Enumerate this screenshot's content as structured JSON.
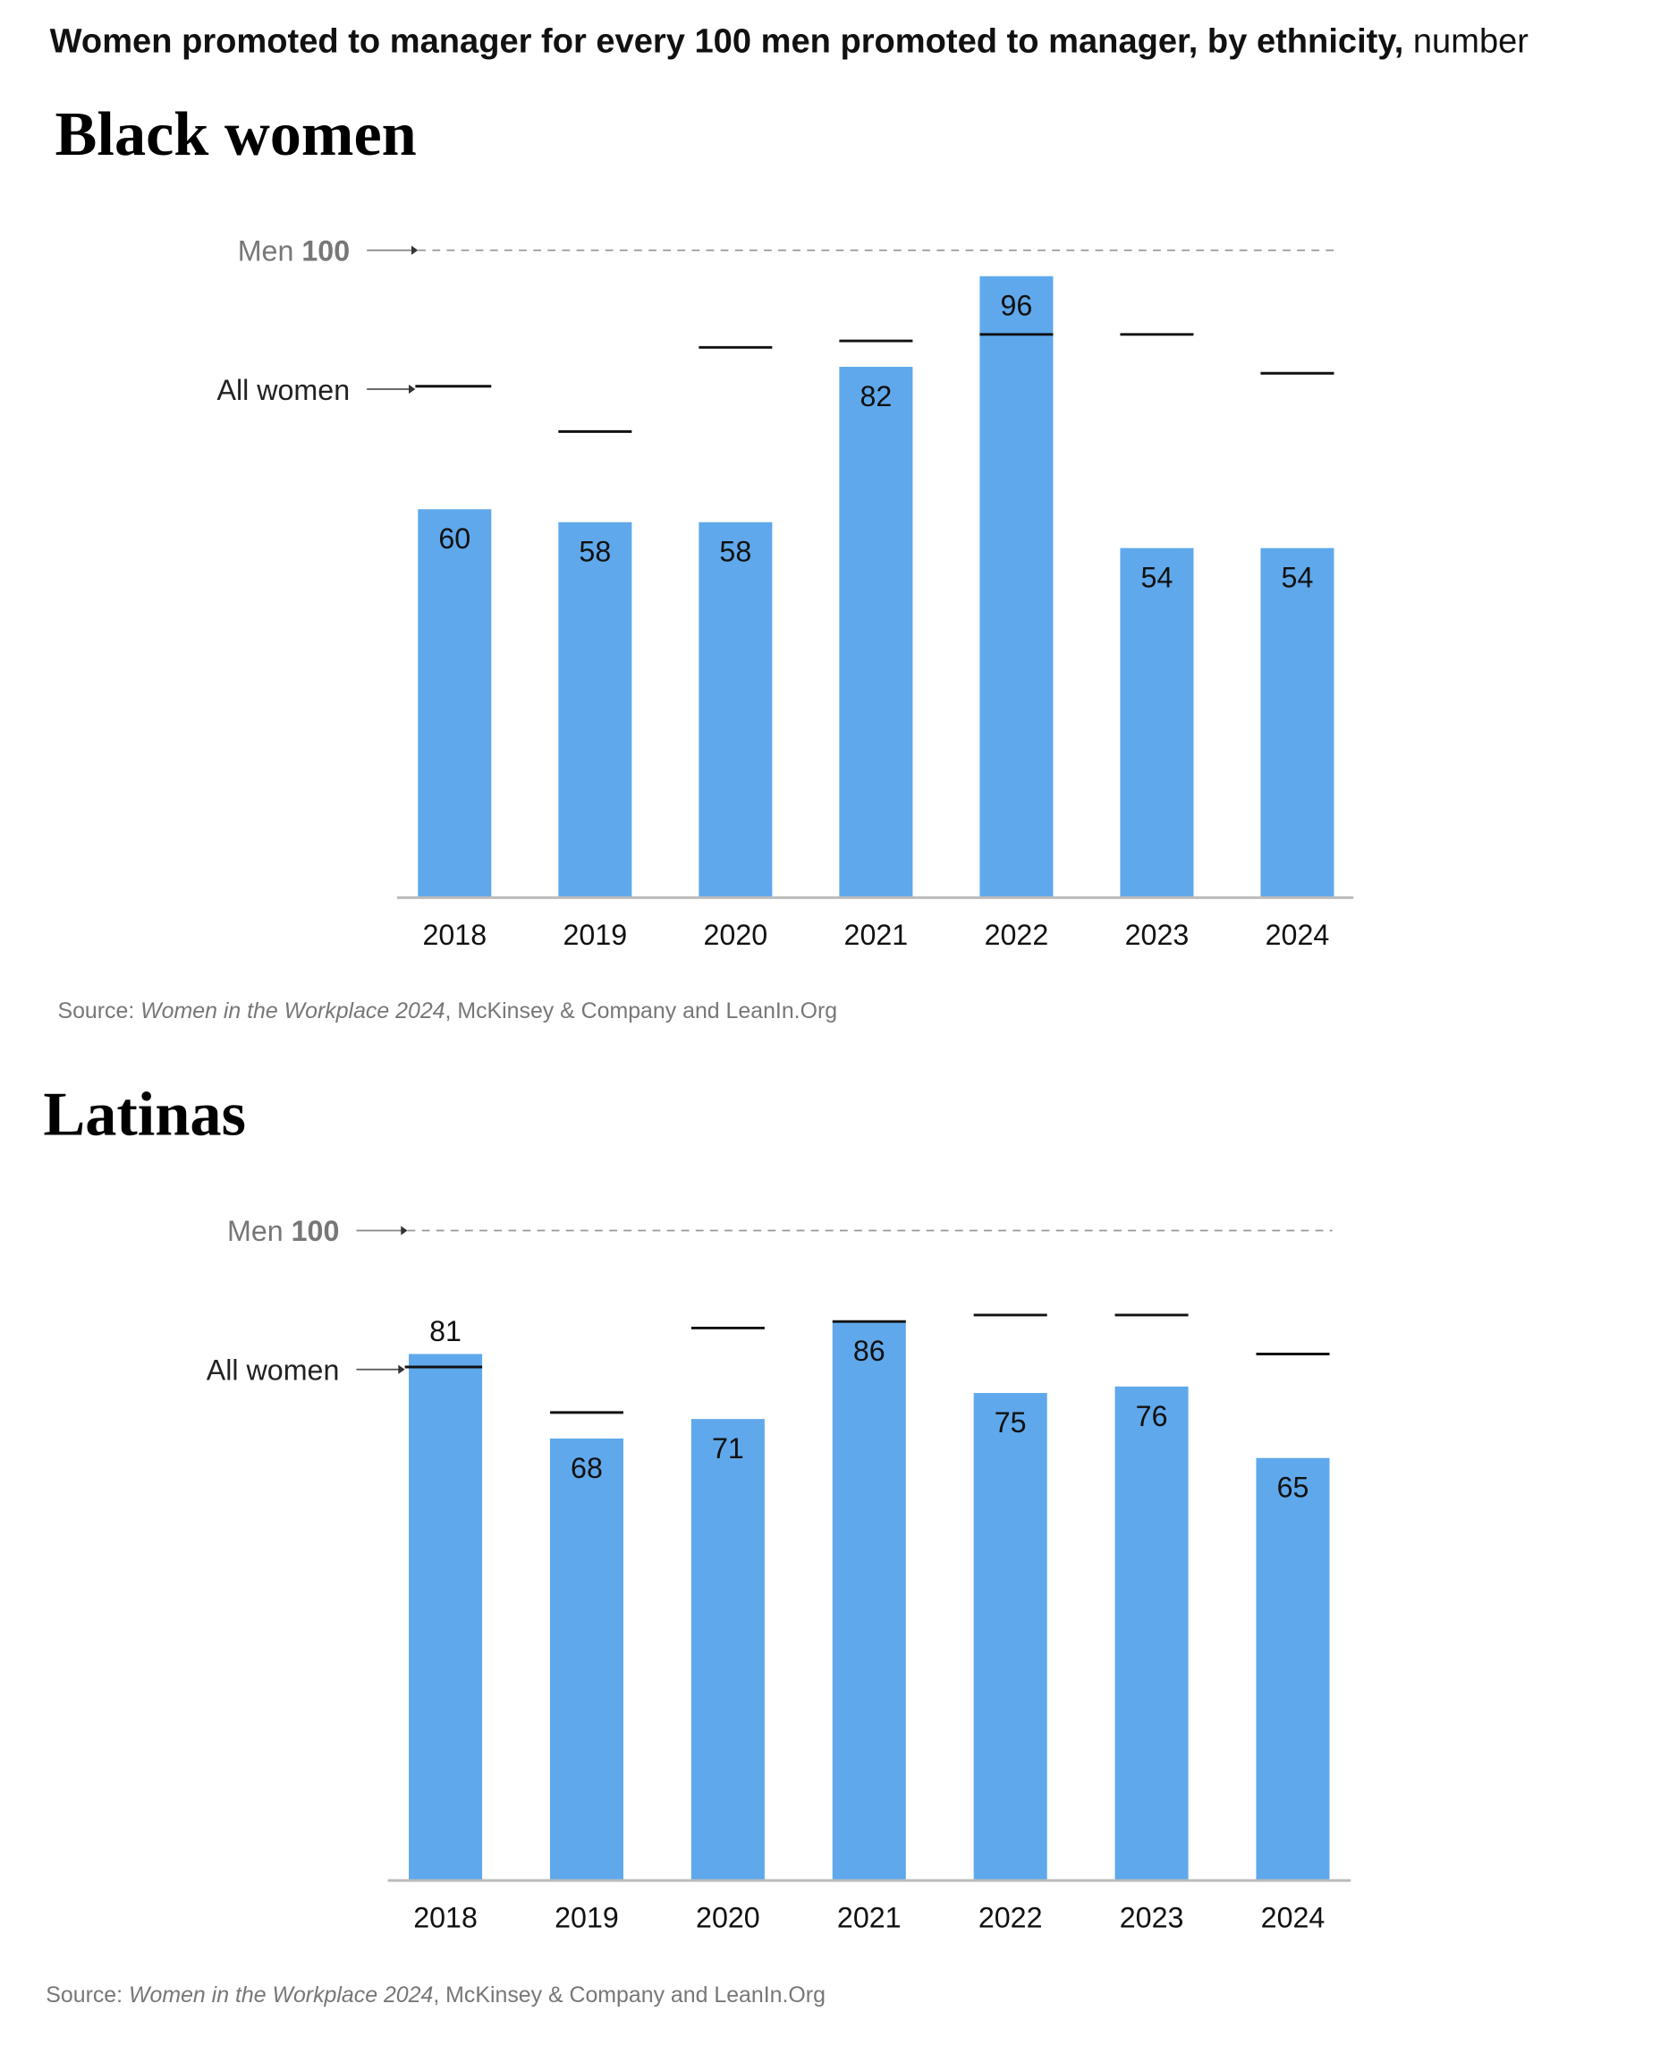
{
  "header": {
    "title_bold": "Women promoted to manager for every 100 men promoted to manager, by ethnicity,",
    "title_unit": "number"
  },
  "chart_data": [
    {
      "type": "bar",
      "title": "Black women",
      "categories": [
        "2018",
        "2019",
        "2020",
        "2021",
        "2022",
        "2023",
        "2024"
      ],
      "values": [
        60,
        58,
        58,
        82,
        96,
        54,
        54
      ],
      "color": "#5fa8eb",
      "benchmark": {
        "name": "All women",
        "values": [
          79,
          72,
          85,
          86,
          87,
          87,
          81
        ],
        "color": "#111111"
      },
      "reference": {
        "name": "Men",
        "value": 100
      },
      "ylim": [
        0,
        100
      ],
      "source": {
        "prefix": "Source:",
        "title": "Women in the Workplace 2024",
        "rest": ", McKinsey & Company and LeanIn.Org"
      }
    },
    {
      "type": "bar",
      "title": "Latinas",
      "categories": [
        "2018",
        "2019",
        "2020",
        "2021",
        "2022",
        "2023",
        "2024"
      ],
      "values": [
        81,
        68,
        71,
        86,
        75,
        76,
        65
      ],
      "color": "#5fa8eb",
      "benchmark": {
        "name": "All women",
        "values": [
          79,
          72,
          85,
          86,
          87,
          87,
          81
        ],
        "color": "#111111"
      },
      "reference": {
        "name": "Men",
        "value": 100
      },
      "ylim": [
        0,
        100
      ],
      "source": {
        "prefix": "Source:",
        "title": "Women in the Workplace 2024",
        "rest": ", McKinsey & Company and LeanIn.Org"
      }
    }
  ]
}
